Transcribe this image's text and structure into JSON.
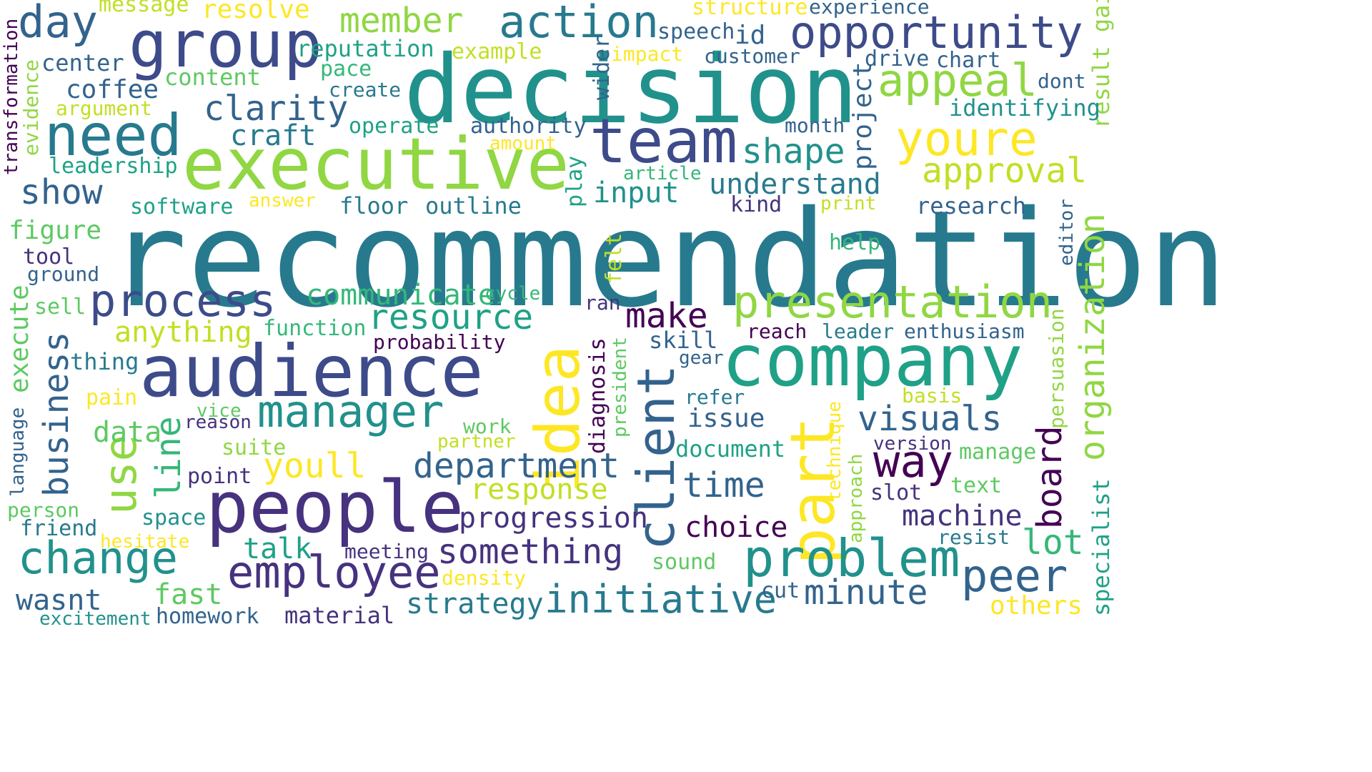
{
  "palette": {
    "d1": "#440154",
    "d2": "#46327e",
    "d3": "#3d4b8a",
    "d4": "#33638d",
    "t1": "#277a8e",
    "t2": "#21918c",
    "t3": "#1fa187",
    "g1": "#35b779",
    "g2": "#5ec962",
    "g3": "#90d743",
    "g4": "#c2df23",
    "y1": "#fde725"
  },
  "words": [
    {
      "id": "recommendation",
      "text": "recommendation"
    },
    {
      "id": "decision",
      "text": "decision"
    },
    {
      "id": "executive",
      "text": "executive"
    },
    {
      "id": "audience",
      "text": "audience"
    },
    {
      "id": "people",
      "text": "people"
    },
    {
      "id": "company",
      "text": "company"
    },
    {
      "id": "group",
      "text": "group"
    },
    {
      "id": "team",
      "text": "team"
    },
    {
      "id": "idea",
      "text": "idea"
    },
    {
      "id": "part",
      "text": "part"
    },
    {
      "id": "client",
      "text": "client"
    },
    {
      "id": "problem",
      "text": "problem"
    },
    {
      "id": "opportunity",
      "text": "opportunity"
    },
    {
      "id": "need",
      "text": "need"
    },
    {
      "id": "presentation",
      "text": "presentation"
    },
    {
      "id": "manager",
      "text": "manager"
    },
    {
      "id": "action",
      "text": "action"
    },
    {
      "id": "youre",
      "text": "youre"
    },
    {
      "id": "appeal",
      "text": "appeal"
    },
    {
      "id": "change",
      "text": "change"
    },
    {
      "id": "employee",
      "text": "employee"
    },
    {
      "id": "process",
      "text": "process"
    },
    {
      "id": "use",
      "text": "use"
    },
    {
      "id": "peer",
      "text": "peer"
    },
    {
      "id": "way",
      "text": "way"
    },
    {
      "id": "something",
      "text": "something"
    },
    {
      "id": "minute",
      "text": "minute"
    },
    {
      "id": "initiative",
      "text": "initiative"
    },
    {
      "id": "resource",
      "text": "resource"
    },
    {
      "id": "department",
      "text": "department"
    },
    {
      "id": "day",
      "text": "day"
    },
    {
      "id": "member",
      "text": "member"
    },
    {
      "id": "approval",
      "text": "approval"
    },
    {
      "id": "clarity",
      "text": "clarity"
    },
    {
      "id": "shape",
      "text": "shape"
    },
    {
      "id": "business",
      "text": "business"
    },
    {
      "id": "board",
      "text": "board"
    },
    {
      "id": "organization",
      "text": "organization"
    },
    {
      "id": "visuals",
      "text": "visuals"
    },
    {
      "id": "youll",
      "text": "youll"
    },
    {
      "id": "time",
      "text": "time"
    },
    {
      "id": "lot",
      "text": "lot"
    },
    {
      "id": "make",
      "text": "make"
    },
    {
      "id": "show",
      "text": "show"
    },
    {
      "id": "understand",
      "text": "understand"
    },
    {
      "id": "line",
      "text": "line"
    },
    {
      "id": "progression",
      "text": "progression"
    },
    {
      "id": "machine",
      "text": "machine"
    },
    {
      "id": "choice",
      "text": "choice"
    },
    {
      "id": "strategy",
      "text": "strategy"
    },
    {
      "id": "communicate",
      "text": "communicate"
    },
    {
      "id": "anything",
      "text": "anything"
    },
    {
      "id": "response",
      "text": "response"
    },
    {
      "id": "coffee",
      "text": "coffee"
    },
    {
      "id": "craft",
      "text": "craft"
    },
    {
      "id": "input",
      "text": "input"
    },
    {
      "id": "fast",
      "text": "fast"
    },
    {
      "id": "issue",
      "text": "issue"
    },
    {
      "id": "wasnt",
      "text": "wasnt"
    },
    {
      "id": "talk",
      "text": "talk"
    },
    {
      "id": "data",
      "text": "data"
    },
    {
      "id": "figure",
      "text": "figure"
    },
    {
      "id": "execute",
      "text": "execute"
    },
    {
      "id": "project",
      "text": "project"
    },
    {
      "id": "result-gain",
      "text": "result gain"
    },
    {
      "id": "authority",
      "text": "authority"
    },
    {
      "id": "identifying",
      "text": "identifying"
    },
    {
      "id": "research",
      "text": "research"
    },
    {
      "id": "document",
      "text": "document"
    },
    {
      "id": "reputation",
      "text": "reputation"
    },
    {
      "id": "center",
      "text": "center"
    },
    {
      "id": "content",
      "text": "content"
    },
    {
      "id": "leadership",
      "text": "leadership"
    },
    {
      "id": "software",
      "text": "software"
    },
    {
      "id": "floor",
      "text": "floor"
    },
    {
      "id": "outline",
      "text": "outline"
    },
    {
      "id": "operate",
      "text": "operate"
    },
    {
      "id": "homework",
      "text": "homework"
    },
    {
      "id": "material",
      "text": "material"
    },
    {
      "id": "others",
      "text": "others"
    },
    {
      "id": "specialist",
      "text": "specialist"
    },
    {
      "id": "persuasion",
      "text": "persuasion"
    },
    {
      "id": "enthusiasm",
      "text": "enthusiasm"
    },
    {
      "id": "leader",
      "text": "leader"
    },
    {
      "id": "reach",
      "text": "reach"
    },
    {
      "id": "skill",
      "text": "skill"
    },
    {
      "id": "diagnosis",
      "text": "diagnosis"
    },
    {
      "id": "probability",
      "text": "probability"
    },
    {
      "id": "function",
      "text": "function"
    },
    {
      "id": "thing",
      "text": "thing"
    },
    {
      "id": "language",
      "text": "language"
    },
    {
      "id": "person",
      "text": "person"
    },
    {
      "id": "friend",
      "text": "friend"
    },
    {
      "id": "meeting",
      "text": "meeting"
    },
    {
      "id": "sound",
      "text": "sound"
    },
    {
      "id": "cut",
      "text": "cut"
    },
    {
      "id": "slot",
      "text": "slot"
    },
    {
      "id": "resist",
      "text": "resist"
    },
    {
      "id": "manage",
      "text": "manage"
    },
    {
      "id": "text",
      "text": "text"
    },
    {
      "id": "version",
      "text": "version"
    },
    {
      "id": "basis",
      "text": "basis"
    },
    {
      "id": "refer",
      "text": "refer"
    },
    {
      "id": "gear",
      "text": "gear"
    },
    {
      "id": "point",
      "text": "point"
    },
    {
      "id": "suite",
      "text": "suite"
    },
    {
      "id": "partner",
      "text": "partner"
    },
    {
      "id": "work",
      "text": "work"
    },
    {
      "id": "space",
      "text": "space"
    },
    {
      "id": "hesitate",
      "text": "hesitate"
    },
    {
      "id": "density",
      "text": "density"
    },
    {
      "id": "excitement",
      "text": "excitement"
    },
    {
      "id": "pain",
      "text": "pain"
    },
    {
      "id": "vice",
      "text": "vice"
    },
    {
      "id": "reason",
      "text": "reason"
    },
    {
      "id": "sell",
      "text": "sell"
    },
    {
      "id": "tool",
      "text": "tool"
    },
    {
      "id": "ground",
      "text": "ground"
    },
    {
      "id": "cycle",
      "text": "cycle"
    },
    {
      "id": "ran",
      "text": "ran"
    },
    {
      "id": "felt",
      "text": "felt"
    },
    {
      "id": "play",
      "text": "play"
    },
    {
      "id": "president",
      "text": "president"
    },
    {
      "id": "technique",
      "text": "technique"
    },
    {
      "id": "approach",
      "text": "approach"
    },
    {
      "id": "help",
      "text": "help"
    },
    {
      "id": "print",
      "text": "print"
    },
    {
      "id": "kind",
      "text": "kind"
    },
    {
      "id": "article",
      "text": "article"
    },
    {
      "id": "month",
      "text": "month"
    },
    {
      "id": "drive",
      "text": "drive"
    },
    {
      "id": "chart",
      "text": "chart"
    },
    {
      "id": "dont",
      "text": "dont"
    },
    {
      "id": "editor",
      "text": "editor"
    },
    {
      "id": "answer",
      "text": "answer"
    },
    {
      "id": "amount",
      "text": "amount"
    },
    {
      "id": "create",
      "text": "create"
    },
    {
      "id": "pace",
      "text": "pace"
    },
    {
      "id": "example",
      "text": "example"
    },
    {
      "id": "argument",
      "text": "argument"
    },
    {
      "id": "evidence",
      "text": "evidence"
    },
    {
      "id": "transformation",
      "text": "transformation"
    },
    {
      "id": "message",
      "text": "message"
    },
    {
      "id": "resolve",
      "text": "resolve"
    },
    {
      "id": "structure",
      "text": "structure"
    },
    {
      "id": "experience",
      "text": "experience"
    },
    {
      "id": "speech",
      "text": "speech"
    },
    {
      "id": "id",
      "text": "id"
    },
    {
      "id": "impact",
      "text": "impact"
    },
    {
      "id": "customer",
      "text": "customer"
    },
    {
      "id": "wider",
      "text": "wider"
    }
  ]
}
